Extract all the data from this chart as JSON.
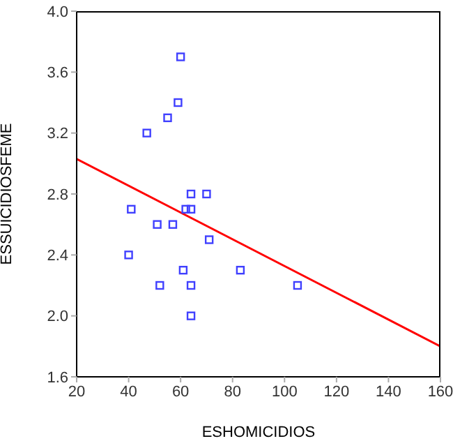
{
  "chart_data": {
    "type": "scatter",
    "xlabel": "ESHOMICIDIOS",
    "ylabel": "ESSUICIDIOSFEME",
    "xlim": [
      20,
      160
    ],
    "xticks": [
      20,
      40,
      60,
      80,
      100,
      120,
      140,
      160
    ],
    "ylim": [
      1.6,
      4.0
    ],
    "yticks": [
      1.6,
      {
        "value": 2,
        "label": "2.0"
      },
      2.4,
      2.8,
      3.2,
      3.6,
      {
        "value": 4,
        "label": "4.0"
      }
    ],
    "grid": false,
    "legend": false,
    "marker": "square",
    "series": [
      {
        "color": "#4040ff",
        "x": [
          60,
          59,
          55,
          47,
          64,
          70,
          41,
          62,
          64,
          51,
          57,
          71,
          40,
          61,
          83,
          52,
          64,
          105,
          64
        ],
        "values": [
          3.7,
          3.4,
          3.3,
          3.2,
          2.8,
          2.8,
          2.7,
          2.7,
          2.7,
          2.6,
          2.6,
          2.5,
          2.4,
          2.3,
          2.3,
          2.2,
          2.2,
          2.2,
          2.0
        ]
      },
      {
        "type": "line",
        "color": "#ff0000",
        "x": [
          20,
          160
        ],
        "values": [
          3.03,
          1.8
        ],
        "marker": "none"
      }
    ]
  }
}
